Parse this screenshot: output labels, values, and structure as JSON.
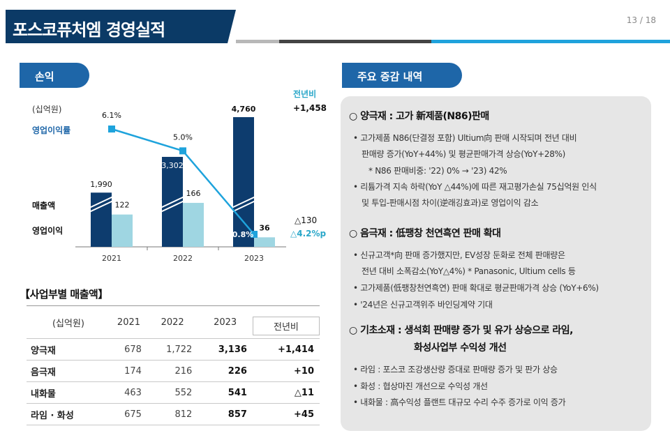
{
  "header": {
    "title": "포스코퓨처엠 경영실적",
    "page": "13 / 18"
  },
  "colors": {
    "navy": "#0b3a66",
    "revenue_bar": "#0d3c6e",
    "profit_bar": "#9fd6e2",
    "line": "#1ea3dc",
    "accent_blue": "#1e66a8"
  },
  "left_section": {
    "title": "손익"
  },
  "right_section": {
    "title": "주요 증감 내역"
  },
  "chart_data": {
    "type": "bar",
    "unit_label": "(십억원)",
    "yoy_header": "전년비",
    "categories": [
      "2021",
      "2022",
      "2023"
    ],
    "series": [
      {
        "name": "매출액",
        "values": [
          1990,
          3302,
          4760
        ],
        "labels": [
          "1,990",
          "3,302",
          "4,760"
        ],
        "yoy": "+1,458"
      },
      {
        "name": "영업이익",
        "values": [
          122,
          166,
          36
        ],
        "labels": [
          "122",
          "166",
          "36"
        ],
        "yoy": "△130"
      },
      {
        "name": "영업이익률",
        "type": "line",
        "values": [
          6.1,
          5.0,
          0.8
        ],
        "labels": [
          "6.1%",
          "5.0%",
          "0.8%"
        ],
        "yoy": "△4.2%p"
      }
    ]
  },
  "segments": {
    "title": "【사업부별 매출액】",
    "unit": "(십억원)",
    "columns": [
      "2021",
      "2022",
      "2023",
      "전년비"
    ],
    "rows": [
      {
        "name": "양극재",
        "v2021": "678",
        "v2022": "1,722",
        "v2023": "3,136",
        "yoy": "+1,414"
      },
      {
        "name": "음극재",
        "v2021": "174",
        "v2022": "216",
        "v2023": "226",
        "yoy": "+10"
      },
      {
        "name": "내화물",
        "v2021": "463",
        "v2022": "552",
        "v2023": "541",
        "yoy": "△11"
      },
      {
        "name": "라임 · 화성",
        "v2021": "675",
        "v2022": "812",
        "v2023": "857",
        "yoy": "+45"
      }
    ]
  },
  "details": {
    "cathode": {
      "heading": "○ 양극재 : 고가 新제품(N86)판매",
      "lines": [
        "• 고가제품 N86(단결정 포함) Ultium向 판매 시작되며 전년 대비",
        "판매량 증가(YoY+44%) 및 평균판매가격 상승(YoY+28%)",
        "* N86 판매비중: '22) 0% → '23) 42%",
        "• 리튬가격 지속 하락(YoY △44%)에 따른 재고평가손실 75십억원 인식",
        "및 투입-판매시점 차이(逆래깅효과)로 영업이익 감소"
      ]
    },
    "anode": {
      "heading": "○ 음극재 : 低팽창 천연흑연 판매 확대",
      "lines": [
        "• 신규고객*向 판매 증가했지만, EV성장 둔화로 전체 판매량은",
        "전년 대비 소폭감소(YoY△4%)     * Panasonic, Ultium cells 등",
        "• 고가제품(低팽창천연흑연) 판매 확대로 평균판매가격 상승 (YoY+6%)",
        "• '24년은 신규고객위주 바인딩계약 기대"
      ]
    },
    "basic": {
      "heading1": "○ 기초소재 : 생석회 판매량 증가 및 유가 상승으로 라임,",
      "heading2": "화성사업부 수익성 개선",
      "lines": [
        "• 라임 : 포스코 조강생산량 증대로 판매량 증가 및 판가 상승",
        "• 화성 : 협상마진 개선으로 수익성 개선",
        "• 내화물 : 高수익성 플랜트 대규모 수리 수주 증가로 이익 증가"
      ]
    }
  }
}
